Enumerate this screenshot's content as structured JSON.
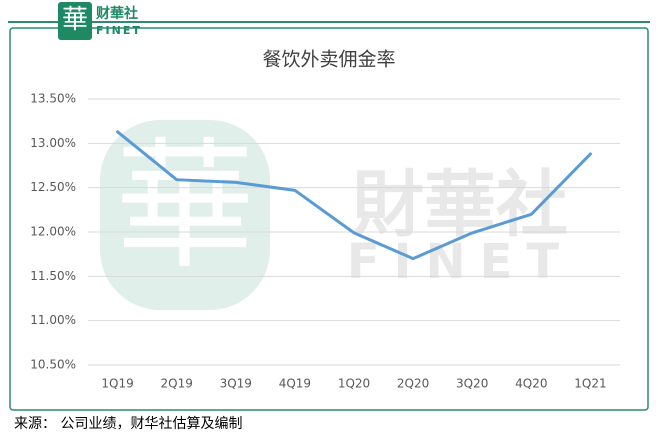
{
  "logo": {
    "mark": "華",
    "name": "财華社",
    "sub": "FINET"
  },
  "watermark": {
    "mark": "華",
    "name": "財華社",
    "sub": "FINET"
  },
  "chart_data": {
    "type": "line",
    "title": "餐饮外卖佣金率",
    "categories": [
      "1Q19",
      "2Q19",
      "3Q19",
      "4Q19",
      "1Q20",
      "2Q20",
      "3Q20",
      "4Q20",
      "1Q21"
    ],
    "values": [
      13.13,
      12.59,
      12.56,
      12.47,
      11.99,
      11.7,
      11.99,
      12.2,
      12.88
    ],
    "color": "#5b9bd5",
    "ylim": [
      10.5,
      13.5
    ],
    "yticks": [
      {
        "value": 10.5,
        "label": "10.50%"
      },
      {
        "value": 11,
        "label": "11.00%"
      },
      {
        "value": 11.5,
        "label": "11.50%"
      },
      {
        "value": 12,
        "label": "12.00%"
      },
      {
        "value": 12.5,
        "label": "12.50%"
      },
      {
        "value": 13,
        "label": "13.00%"
      },
      {
        "value": 13.5,
        "label": "13.50%"
      }
    ],
    "grid": true
  },
  "source": "来源： 公司业绩，财华社估算及编制"
}
